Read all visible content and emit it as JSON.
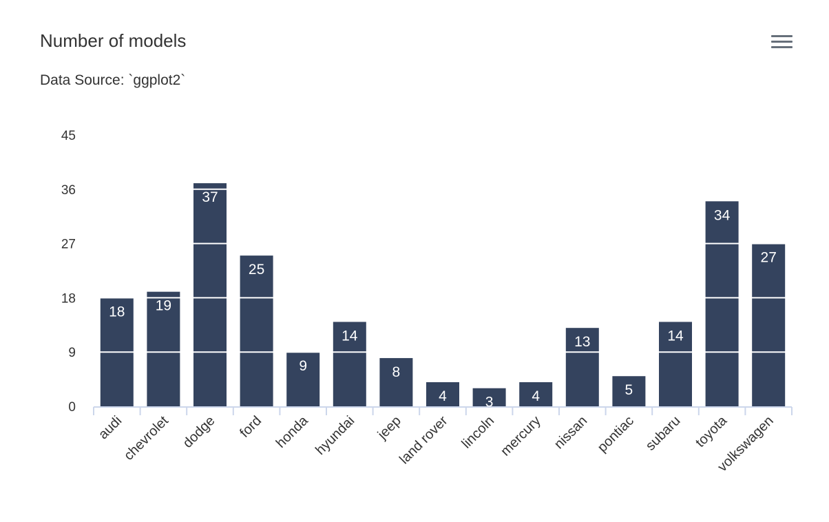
{
  "header": {
    "title": "Number of models",
    "subtitle": "Data Source: `ggplot2`"
  },
  "toolbar": {
    "menu_icon": "hamburger-menu-icon"
  },
  "colors": {
    "bar": "#34435e",
    "axis": "#ccd6eb",
    "grid": "#ffffff",
    "label_text": "#ffffff",
    "tick_text": "#333333"
  },
  "chart_data": {
    "type": "bar",
    "categories": [
      "audi",
      "chevrolet",
      "dodge",
      "ford",
      "honda",
      "hyundai",
      "jeep",
      "land rover",
      "lincoln",
      "mercury",
      "nissan",
      "pontiac",
      "subaru",
      "toyota",
      "volkswagen"
    ],
    "values": [
      18,
      19,
      37,
      25,
      9,
      14,
      8,
      4,
      3,
      4,
      13,
      5,
      14,
      34,
      27
    ],
    "title": "Number of models",
    "subtitle": "Data Source: `ggplot2`",
    "xlabel": "",
    "ylabel": "",
    "ylim": [
      0,
      45
    ],
    "yticks": [
      0,
      9,
      18,
      27,
      36,
      45
    ],
    "grid": true,
    "grid_on_top": true,
    "legend": false,
    "data_labels": true
  }
}
